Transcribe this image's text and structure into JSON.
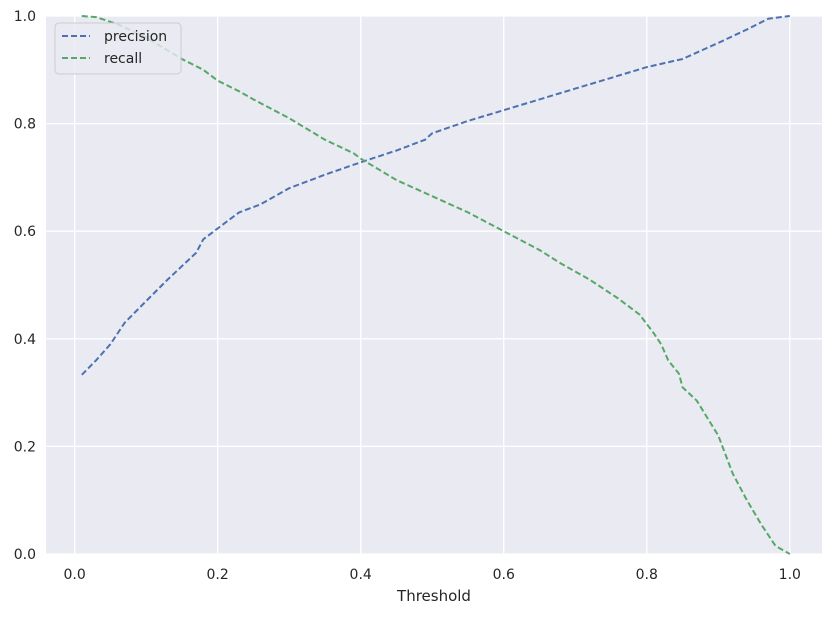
{
  "chart_data": {
    "type": "line",
    "title": "",
    "xlabel": "Threshold",
    "ylabel": "",
    "xlim": [
      -0.04,
      1.045
    ],
    "ylim": [
      0,
      1
    ],
    "x_ticks": [
      0.0,
      0.2,
      0.4,
      0.6,
      0.8,
      1.0
    ],
    "x_tick_labels": [
      "0.0",
      "0.2",
      "0.4",
      "0.6",
      "0.8",
      "1.0"
    ],
    "y_ticks": [
      0.0,
      0.2,
      0.4,
      0.6,
      0.8,
      1.0
    ],
    "y_tick_labels": [
      "0.0",
      "0.2",
      "0.4",
      "0.6",
      "0.8",
      "1.0"
    ],
    "grid": true,
    "legend_position": "top-left",
    "background_color": "#eaeaf2",
    "grid_color": "#ffffff",
    "series": [
      {
        "name": "precision",
        "color": "#4c72b0",
        "line_style": "dashed",
        "x": [
          0.01,
          0.03,
          0.05,
          0.07,
          0.1,
          0.13,
          0.17,
          0.18,
          0.2,
          0.23,
          0.26,
          0.3,
          0.35,
          0.4,
          0.45,
          0.49,
          0.5,
          0.55,
          0.6,
          0.65,
          0.7,
          0.75,
          0.8,
          0.85,
          0.9,
          0.94,
          0.97,
          1.0
        ],
        "y": [
          0.333,
          0.36,
          0.39,
          0.43,
          0.47,
          0.51,
          0.56,
          0.585,
          0.605,
          0.635,
          0.65,
          0.68,
          0.705,
          0.728,
          0.75,
          0.77,
          0.782,
          0.805,
          0.825,
          0.845,
          0.865,
          0.885,
          0.905,
          0.92,
          0.95,
          0.975,
          0.995,
          1.0
        ]
      },
      {
        "name": "recall",
        "color": "#55a868",
        "line_style": "dashed",
        "x": [
          0.01,
          0.03,
          0.06,
          0.1,
          0.15,
          0.18,
          0.2,
          0.23,
          0.25,
          0.3,
          0.35,
          0.39,
          0.4,
          0.45,
          0.5,
          0.55,
          0.6,
          0.65,
          0.68,
          0.72,
          0.76,
          0.79,
          0.81,
          0.82,
          0.83,
          0.845,
          0.85,
          0.87,
          0.9,
          0.92,
          0.94,
          0.96,
          0.98,
          1.0
        ],
        "y": [
          1.0,
          0.998,
          0.985,
          0.96,
          0.92,
          0.9,
          0.88,
          0.86,
          0.845,
          0.81,
          0.77,
          0.745,
          0.735,
          0.695,
          0.665,
          0.635,
          0.6,
          0.565,
          0.54,
          0.51,
          0.475,
          0.445,
          0.41,
          0.39,
          0.36,
          0.335,
          0.31,
          0.285,
          0.22,
          0.15,
          0.1,
          0.055,
          0.015,
          0.0
        ]
      }
    ]
  }
}
